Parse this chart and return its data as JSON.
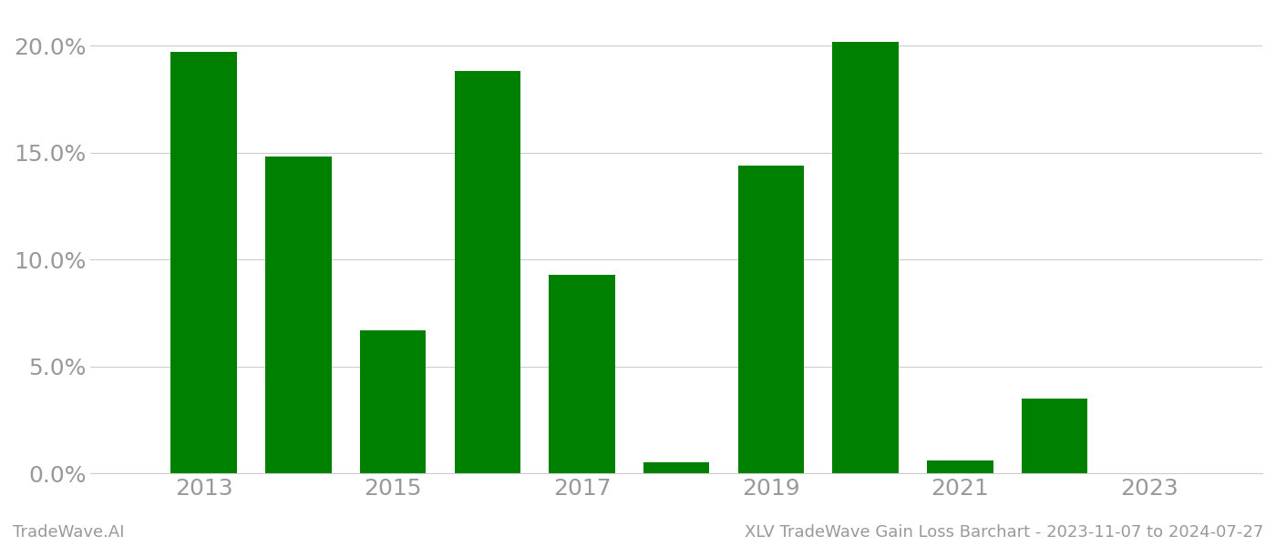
{
  "years": [
    2013,
    2014,
    2015,
    2016,
    2017,
    2018,
    2019,
    2020,
    2021,
    2022,
    2023
  ],
  "values": [
    0.197,
    0.148,
    0.067,
    0.188,
    0.093,
    0.005,
    0.144,
    0.202,
    0.006,
    0.035,
    0.0
  ],
  "bar_color": "#008000",
  "background_color": "#ffffff",
  "footer_left": "TradeWave.AI",
  "footer_right": "XLV TradeWave Gain Loss Barchart - 2023-11-07 to 2024-07-27",
  "ylim": [
    0,
    0.215
  ],
  "yticks": [
    0.0,
    0.05,
    0.1,
    0.15,
    0.2
  ],
  "xtick_positions": [
    2013,
    2015,
    2017,
    2019,
    2021,
    2023
  ],
  "xlim_left": 2011.8,
  "xlim_right": 2024.2,
  "grid_color": "#cccccc",
  "tick_label_color": "#999999",
  "footer_color": "#999999",
  "tick_fontsize": 18,
  "footer_fontsize": 13,
  "bar_width": 0.7
}
